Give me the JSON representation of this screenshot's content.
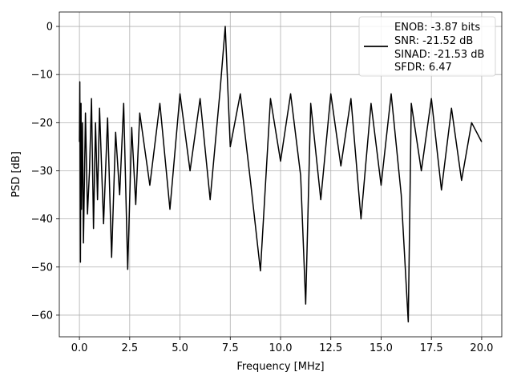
{
  "chart_data": {
    "type": "line",
    "title": "",
    "xlabel": "Frequency [MHz]",
    "ylabel": "PSD [dB]",
    "xlim": [
      -1.0,
      21.0
    ],
    "ylim": [
      -64.5,
      3.0
    ],
    "xticks": [
      0.0,
      2.5,
      5.0,
      7.5,
      10.0,
      12.5,
      15.0,
      17.5,
      20.0
    ],
    "xtick_labels": [
      "0.0",
      "2.5",
      "5.0",
      "7.5",
      "10.0",
      "12.5",
      "15.0",
      "17.5",
      "20.0"
    ],
    "yticks": [
      0,
      -10,
      -20,
      -30,
      -40,
      -50,
      -60
    ],
    "ytick_labels": [
      "0",
      "−10",
      "−20",
      "−30",
      "−40",
      "−50",
      "−60"
    ],
    "grid": true,
    "line_color": "#000000",
    "legend": {
      "placement": "top-right",
      "entries": [
        "ENOB: -3.87 bits",
        "SNR: -21.52 dB",
        "SINAD: -21.53 dB",
        "SFDR: 6.47"
      ]
    },
    "series": [
      {
        "x": [
          0.0,
          0.02,
          0.05,
          0.08,
          0.1,
          0.15,
          0.2,
          0.3,
          0.4,
          0.5,
          0.6,
          0.7,
          0.8,
          0.9,
          1.0,
          1.2,
          1.4,
          1.6,
          1.8,
          2.0,
          2.2,
          2.4,
          2.6,
          2.8,
          3.0,
          3.5,
          4.0,
          4.5,
          5.0,
          5.5,
          6.0,
          6.5,
          7.0,
          7.25,
          7.5,
          8.0,
          8.5,
          9.0,
          9.5,
          10.0,
          10.5,
          11.0,
          11.25,
          11.5,
          12.0,
          12.5,
          13.0,
          13.5,
          14.0,
          14.5,
          15.0,
          15.5,
          16.0,
          16.35,
          16.5,
          17.0,
          17.5,
          18.0,
          18.5,
          19.0,
          19.5,
          20.0
        ],
        "y": [
          -24,
          -11.5,
          -49,
          -16,
          -38,
          -20,
          -45,
          -18,
          -39,
          -30,
          -15,
          -42,
          -20,
          -36,
          -17,
          -41,
          -19,
          -48,
          -22,
          -35,
          -16,
          -50.5,
          -21,
          -37,
          -18,
          -33,
          -16,
          -38,
          -14,
          -30,
          -15,
          -36,
          -13,
          0,
          -25,
          -14,
          -32,
          -50.8,
          -15,
          -28,
          -14,
          -31,
          -57.7,
          -16,
          -36,
          -14,
          -29,
          -15,
          -40,
          -16,
          -33,
          -14,
          -35,
          -61.4,
          -16,
          -30,
          -15,
          -34,
          -17,
          -32,
          -20,
          -24
        ]
      }
    ]
  }
}
